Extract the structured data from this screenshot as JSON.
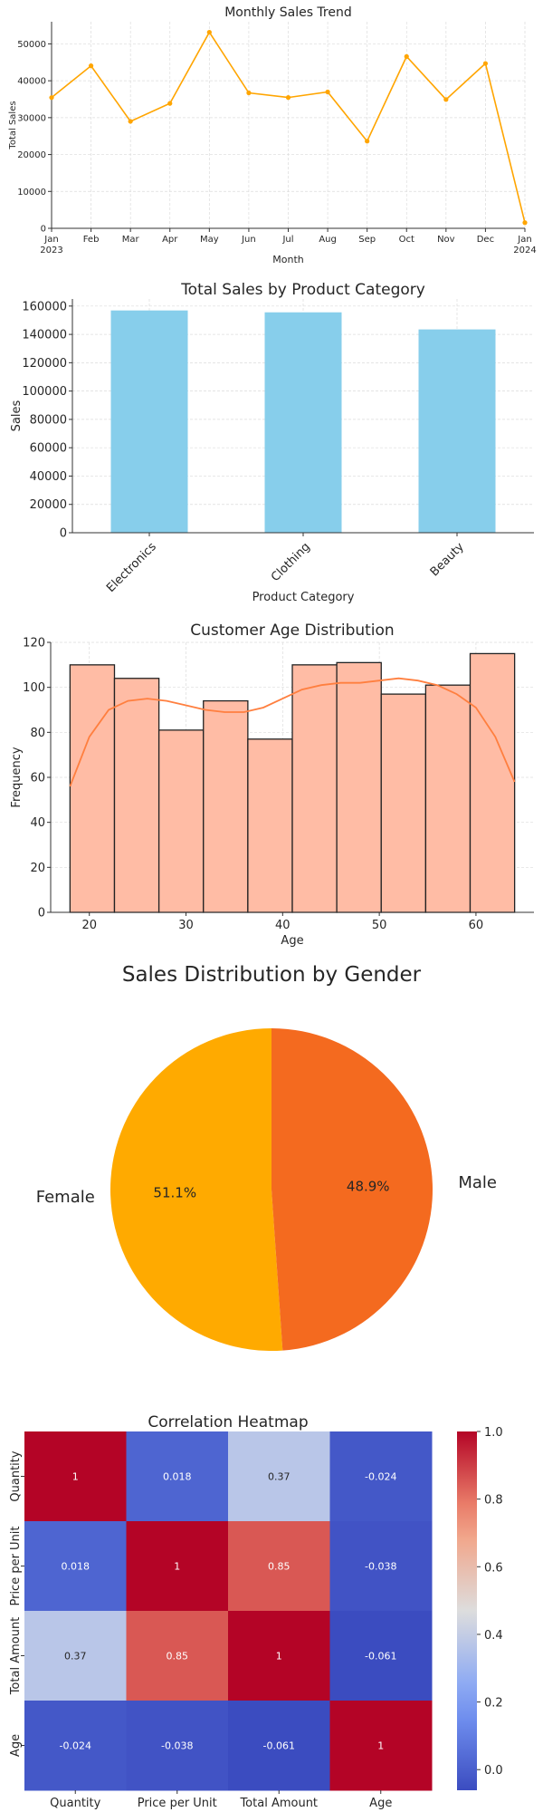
{
  "chart_data": [
    {
      "type": "line",
      "title": "Monthly Sales Trend",
      "xlabel": "Month",
      "ylabel": "Total Sales",
      "x": [
        "Jan 2023",
        "Feb",
        "Mar",
        "Apr",
        "May",
        "Jun",
        "Jul",
        "Aug",
        "Sep",
        "Oct",
        "Nov",
        "Dec",
        "Jan 2024"
      ],
      "tick_labels": [
        [
          "Jan",
          "2023"
        ],
        [
          "Feb"
        ],
        [
          "Mar"
        ],
        [
          "Apr"
        ],
        [
          "May"
        ],
        [
          "Jun"
        ],
        [
          "Jul"
        ],
        [
          "Aug"
        ],
        [
          "Sep"
        ],
        [
          "Oct"
        ],
        [
          "Nov"
        ],
        [
          "Dec"
        ],
        [
          "Jan",
          "2024"
        ]
      ],
      "values": [
        35450,
        44060,
        28990,
        33870,
        53150,
        36715,
        35465,
        36960,
        23620,
        46580,
        34920,
        44690,
        1530
      ],
      "ylim": [
        0,
        56000
      ],
      "yticks": [
        0,
        10000,
        20000,
        30000,
        40000,
        50000
      ],
      "color": "#FFA500",
      "grid": true
    },
    {
      "type": "bar",
      "title": "Total Sales by Product Category",
      "xlabel": "Product Category",
      "ylabel": "Sales",
      "categories": [
        "Electronics",
        "Clothing",
        "Beauty"
      ],
      "values": [
        156905,
        155580,
        143515
      ],
      "ylim": [
        0,
        165000
      ],
      "yticks": [
        0,
        20000,
        40000,
        60000,
        80000,
        100000,
        120000,
        140000,
        160000
      ],
      "color": "#87CEEB",
      "grid": true
    },
    {
      "type": "bar",
      "title": "Customer Age Distribution",
      "xlabel": "Age",
      "ylabel": "Frequency",
      "bin_edges": [
        18,
        22.6,
        27.2,
        31.8,
        36.4,
        41,
        45.6,
        50.2,
        54.8,
        59.4,
        64
      ],
      "values": [
        110,
        104,
        81,
        94,
        77,
        110,
        111,
        97,
        101,
        115
      ],
      "kde": [
        [
          18,
          56
        ],
        [
          20,
          78
        ],
        [
          22,
          90
        ],
        [
          24,
          94
        ],
        [
          26,
          95
        ],
        [
          28,
          94
        ],
        [
          30,
          92
        ],
        [
          32,
          90
        ],
        [
          34,
          89
        ],
        [
          36,
          89
        ],
        [
          38,
          91
        ],
        [
          40,
          95
        ],
        [
          42,
          99
        ],
        [
          44,
          101
        ],
        [
          46,
          102
        ],
        [
          48,
          102
        ],
        [
          50,
          103
        ],
        [
          52,
          104
        ],
        [
          54,
          103
        ],
        [
          56,
          101
        ],
        [
          58,
          97
        ],
        [
          60,
          91
        ],
        [
          62,
          78
        ],
        [
          64,
          58
        ]
      ],
      "xlim": [
        16,
        66
      ],
      "ylim": [
        0,
        120
      ],
      "xticks": [
        20,
        30,
        40,
        50,
        60
      ],
      "yticks": [
        0,
        20,
        40,
        60,
        80,
        100,
        120
      ],
      "bar_color": "#FFBCA5",
      "line_color": "#FF7F3F",
      "grid": true
    },
    {
      "type": "pie",
      "title": "Sales Distribution by Gender",
      "labels": [
        "Female",
        "Male"
      ],
      "values": [
        51.1,
        48.9
      ],
      "value_labels": [
        "51.1%",
        "48.9%"
      ],
      "colors": [
        "#FFAA00",
        "#F46A1F"
      ]
    },
    {
      "type": "heatmap",
      "title": "Correlation Heatmap",
      "rows": [
        "Quantity",
        "Price per Unit",
        "Total Amount",
        "Age"
      ],
      "columns": [
        "Quantity",
        "Price per Unit",
        "Total Amount",
        "Age"
      ],
      "values": [
        [
          1,
          0.018,
          0.37,
          -0.024
        ],
        [
          0.018,
          1,
          0.85,
          -0.038
        ],
        [
          0.37,
          0.85,
          1,
          -0.061
        ],
        [
          -0.024,
          -0.038,
          -0.061,
          1
        ]
      ],
      "value_labels": [
        [
          "1",
          "0.018",
          "0.37",
          "-0.024"
        ],
        [
          "0.018",
          "1",
          "0.85",
          "-0.038"
        ],
        [
          "0.37",
          "0.85",
          "1",
          "-0.061"
        ],
        [
          "-0.024",
          "-0.038",
          "-0.061",
          "1"
        ]
      ],
      "colorbar_range": [
        -0.061,
        1
      ],
      "colorbar_ticks": [
        "0.0",
        "0.2",
        "0.4",
        "0.6",
        "0.8",
        "1.0"
      ],
      "colormap": "coolwarm"
    }
  ]
}
